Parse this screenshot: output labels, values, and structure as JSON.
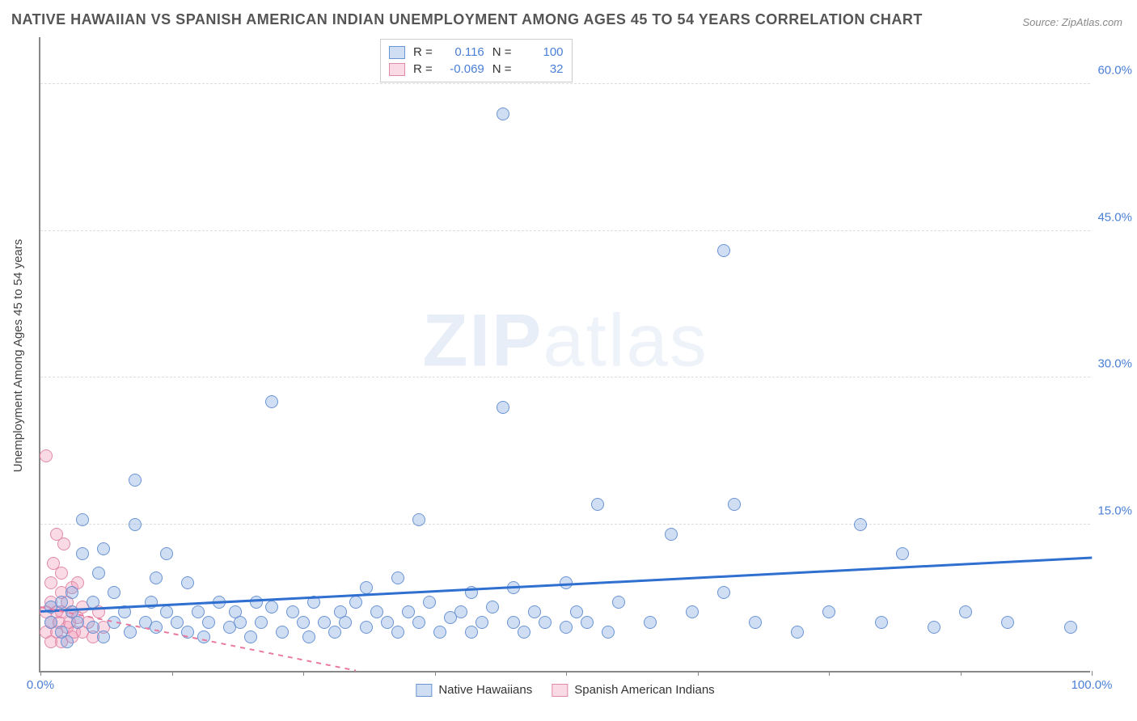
{
  "title": "NATIVE HAWAIIAN VS SPANISH AMERICAN INDIAN UNEMPLOYMENT AMONG AGES 45 TO 54 YEARS CORRELATION CHART",
  "source": "Source: ZipAtlas.com",
  "y_axis_title": "Unemployment Among Ages 45 to 54 years",
  "watermark_bold": "ZIP",
  "watermark_thin": "atlas",
  "chart": {
    "type": "scatter",
    "xlim": [
      0,
      100
    ],
    "ylim": [
      0,
      65
    ],
    "y_ticks": [
      15,
      30,
      45,
      60
    ],
    "y_tick_labels": [
      "15.0%",
      "30.0%",
      "45.0%",
      "60.0%"
    ],
    "x_ticks": [
      0,
      12.5,
      25,
      37.5,
      50,
      62.5,
      75,
      87.5,
      100
    ],
    "x_tick_labels_shown": {
      "0": "0.0%",
      "100": "100.0%"
    },
    "background_color": "#ffffff",
    "grid_color": "#dddddd",
    "axis_color": "#888888",
    "tick_label_color": "#4a7fd6",
    "point_radius": 8,
    "series": [
      {
        "name": "Native Hawaiians",
        "fill_color": "rgba(120,160,220,0.35)",
        "stroke_color": "#6a94d4",
        "trend_color": "#2f6fd0",
        "trend_style": "solid",
        "trend_width": 2.5,
        "R": "0.116",
        "N": "100",
        "trend_line": {
          "x1": 0,
          "y1": 6.0,
          "x2": 100,
          "y2": 11.5
        },
        "points": [
          [
            1,
            5
          ],
          [
            1,
            6.5
          ],
          [
            2,
            4
          ],
          [
            2,
            7
          ],
          [
            2.5,
            3
          ],
          [
            3,
            6
          ],
          [
            3,
            8
          ],
          [
            3.5,
            5
          ],
          [
            4,
            12
          ],
          [
            4,
            15.5
          ],
          [
            5,
            4.5
          ],
          [
            5,
            7
          ],
          [
            5.5,
            10
          ],
          [
            6,
            3.5
          ],
          [
            6,
            12.5
          ],
          [
            7,
            5
          ],
          [
            7,
            8
          ],
          [
            8,
            6
          ],
          [
            8.5,
            4
          ],
          [
            9,
            15
          ],
          [
            9,
            19.5
          ],
          [
            10,
            5
          ],
          [
            10.5,
            7
          ],
          [
            11,
            4.5
          ],
          [
            11,
            9.5
          ],
          [
            12,
            6
          ],
          [
            12,
            12
          ],
          [
            13,
            5
          ],
          [
            14,
            4
          ],
          [
            14,
            9
          ],
          [
            15,
            6
          ],
          [
            15.5,
            3.5
          ],
          [
            16,
            5
          ],
          [
            17,
            7
          ],
          [
            18,
            4.5
          ],
          [
            18.5,
            6
          ],
          [
            19,
            5
          ],
          [
            20,
            3.5
          ],
          [
            20.5,
            7
          ],
          [
            21,
            5
          ],
          [
            22,
            6.5
          ],
          [
            22,
            27.5
          ],
          [
            23,
            4
          ],
          [
            24,
            6
          ],
          [
            25,
            5
          ],
          [
            25.5,
            3.5
          ],
          [
            26,
            7
          ],
          [
            27,
            5
          ],
          [
            28,
            4
          ],
          [
            28.5,
            6
          ],
          [
            29,
            5
          ],
          [
            30,
            7
          ],
          [
            31,
            4.5
          ],
          [
            31,
            8.5
          ],
          [
            32,
            6
          ],
          [
            33,
            5
          ],
          [
            34,
            4
          ],
          [
            34,
            9.5
          ],
          [
            35,
            6
          ],
          [
            36,
            5
          ],
          [
            36,
            15.5
          ],
          [
            37,
            7
          ],
          [
            38,
            4
          ],
          [
            39,
            5.5
          ],
          [
            40,
            6
          ],
          [
            41,
            4
          ],
          [
            41,
            8
          ],
          [
            42,
            5
          ],
          [
            43,
            6.5
          ],
          [
            44,
            27
          ],
          [
            44,
            57
          ],
          [
            45,
            5
          ],
          [
            45,
            8.5
          ],
          [
            46,
            4
          ],
          [
            47,
            6
          ],
          [
            48,
            5
          ],
          [
            50,
            9
          ],
          [
            50,
            4.5
          ],
          [
            51,
            6
          ],
          [
            52,
            5
          ],
          [
            53,
            17
          ],
          [
            54,
            4
          ],
          [
            55,
            7
          ],
          [
            58,
            5
          ],
          [
            60,
            14
          ],
          [
            62,
            6
          ],
          [
            65,
            43
          ],
          [
            65,
            8
          ],
          [
            66,
            17
          ],
          [
            68,
            5
          ],
          [
            72,
            4
          ],
          [
            75,
            6
          ],
          [
            78,
            15
          ],
          [
            80,
            5
          ],
          [
            82,
            12
          ],
          [
            85,
            4.5
          ],
          [
            88,
            6
          ],
          [
            92,
            5
          ],
          [
            98,
            4.5
          ]
        ]
      },
      {
        "name": "Spanish American Indians",
        "fill_color": "rgba(240,150,180,0.35)",
        "stroke_color": "#e08aaa",
        "trend_color": "#e87aa0",
        "trend_style": "dashed",
        "trend_width": 1.5,
        "R": "-0.069",
        "N": "32",
        "trend_line": {
          "x1": 0,
          "y1": 6.5,
          "x2": 30,
          "y2": 0
        },
        "points": [
          [
            0.5,
            4
          ],
          [
            0.5,
            6
          ],
          [
            0.5,
            22
          ],
          [
            1,
            3
          ],
          [
            1,
            5
          ],
          [
            1,
            7
          ],
          [
            1,
            9
          ],
          [
            1.2,
            11
          ],
          [
            1.5,
            4
          ],
          [
            1.5,
            6
          ],
          [
            1.5,
            14
          ],
          [
            1.8,
            5
          ],
          [
            2,
            3
          ],
          [
            2,
            6
          ],
          [
            2,
            8
          ],
          [
            2,
            10
          ],
          [
            2.2,
            13
          ],
          [
            2.5,
            4.5
          ],
          [
            2.5,
            7
          ],
          [
            2.8,
            5
          ],
          [
            3,
            3.5
          ],
          [
            3,
            6
          ],
          [
            3,
            8.5
          ],
          [
            3.2,
            4
          ],
          [
            3.5,
            5.5
          ],
          [
            3.5,
            9
          ],
          [
            4,
            4
          ],
          [
            4,
            6.5
          ],
          [
            4.5,
            5
          ],
          [
            5,
            3.5
          ],
          [
            5.5,
            6
          ],
          [
            6,
            4.5
          ]
        ]
      }
    ]
  },
  "stats_labels": {
    "R": "R =",
    "N": "N ="
  },
  "legend": {
    "series1": "Native Hawaiians",
    "series2": "Spanish American Indians"
  }
}
